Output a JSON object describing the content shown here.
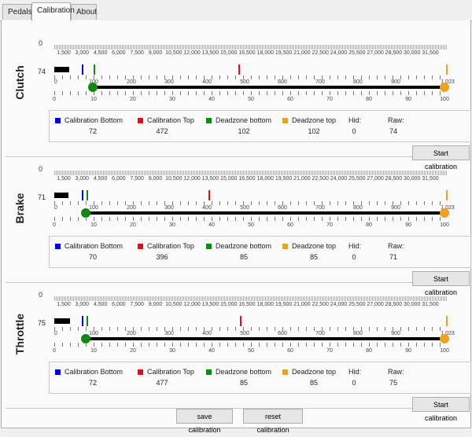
{
  "tabs": [
    {
      "label": "Pedals"
    },
    {
      "label": "Calibration"
    },
    {
      "label": "About"
    }
  ],
  "axis_zero_label": "0",
  "raw_scale_labels": [
    "1,500",
    "3,000",
    "4,500",
    "6,000",
    "7,500",
    "9,000",
    "10,500",
    "12,000",
    "13,500",
    "15,000",
    "16,500",
    "18,000",
    "19,500",
    "21,000",
    "22,500",
    "24,000",
    "25,500",
    "27,000",
    "28,500",
    "30,000",
    "31,500"
  ],
  "pct_scale_labels": [
    "0",
    "10",
    "20",
    "30",
    "40",
    "50",
    "60",
    "70",
    "80",
    "90",
    "100"
  ],
  "value_scale_labels": [
    "100",
    "200",
    "300",
    "400",
    "500",
    "600",
    "700",
    "800",
    "900",
    "1,023"
  ],
  "info_labels": {
    "cal_bottom": "Calibration Bottom",
    "cal_top": "Calibration Top",
    "dz_bottom": "Deadzone bottom",
    "dz_top": "Deadzone top",
    "hid": "Hid:",
    "raw": "Raw:"
  },
  "colors": {
    "cal_bottom": "#0000cc",
    "cal_top": "#dd1111",
    "dz_bottom": "#118811",
    "dz_top": "#f0a020"
  },
  "start_calibration_label": "Start calibration",
  "footer": {
    "save_label": "save calibration",
    "reset_label": "reset calibration"
  },
  "pedals": [
    {
      "name": "Clutch",
      "raw_display": "74",
      "cal_bottom": "72",
      "cal_top": "472",
      "dz_bottom": "102",
      "dz_top": "102",
      "hid": "0",
      "raw": "74",
      "raw_fill_pct": 7.4,
      "marker_bottom_pct": 7.2,
      "marker_top_pct": 47.2,
      "marker_dz_bottom_pct": 10.2,
      "marker_dz_top_pct": 100,
      "handle_low_pct": 10.2,
      "handle_high_pct": 100
    },
    {
      "name": "Brake",
      "raw_display": "71",
      "cal_bottom": "70",
      "cal_top": "396",
      "dz_bottom": "85",
      "dz_top": "85",
      "hid": "0",
      "raw": "71",
      "raw_fill_pct": 7.1,
      "marker_bottom_pct": 7.0,
      "marker_top_pct": 39.6,
      "marker_dz_bottom_pct": 8.5,
      "marker_dz_top_pct": 100,
      "handle_low_pct": 8.5,
      "handle_high_pct": 100
    },
    {
      "name": "Throttle",
      "raw_display": "75",
      "cal_bottom": "72",
      "cal_top": "477",
      "dz_bottom": "85",
      "dz_top": "85",
      "hid": "0",
      "raw": "75",
      "raw_fill_pct": 7.5,
      "marker_bottom_pct": 7.2,
      "marker_top_pct": 47.7,
      "marker_dz_bottom_pct": 8.5,
      "marker_dz_top_pct": 100,
      "handle_low_pct": 8.5,
      "handle_high_pct": 100
    }
  ]
}
